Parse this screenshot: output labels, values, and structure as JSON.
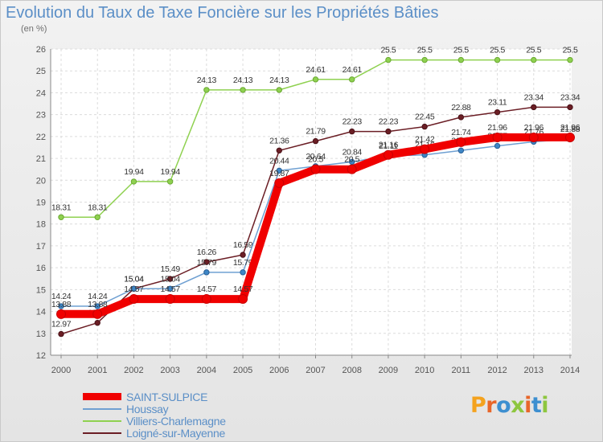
{
  "chart_data": {
    "type": "line",
    "title": "Evolution du Taux de Taxe Foncière sur les Propriétés Bâties",
    "ylabel": "(en %)",
    "xlabel": "",
    "ylim": [
      12,
      26
    ],
    "yticks": [
      12,
      13,
      14,
      15,
      16,
      17,
      18,
      19,
      20,
      21,
      22,
      23,
      24,
      25,
      26
    ],
    "x": [
      2000,
      2001,
      2002,
      2003,
      2004,
      2005,
      2006,
      2007,
      2008,
      2009,
      2010,
      2011,
      2012,
      2013,
      2014
    ],
    "series": [
      {
        "name": "Villiers-Charlemagne",
        "color": "#8fd150",
        "values": [
          18.31,
          18.31,
          19.94,
          19.94,
          24.13,
          24.13,
          24.13,
          24.61,
          24.61,
          25.5,
          25.5,
          25.5,
          25.5,
          25.5,
          25.5
        ]
      },
      {
        "name": "Loigné-sur-Mayenne",
        "color": "#6b1e25",
        "values": [
          12.97,
          13.48,
          15.04,
          15.49,
          16.26,
          16.59,
          21.36,
          21.79,
          22.23,
          22.23,
          22.45,
          22.88,
          23.11,
          23.34,
          23.34
        ]
      },
      {
        "name": "Houssay",
        "color": "#6fa0d2",
        "values": [
          14.24,
          14.24,
          15.04,
          15.04,
          15.79,
          15.79,
          20.44,
          20.64,
          20.84,
          21.11,
          21.16,
          21.36,
          21.57,
          21.76,
          21.88
        ]
      },
      {
        "name": "SAINT-SULPICE",
        "color": "#f00000",
        "values": [
          13.88,
          13.88,
          14.57,
          14.57,
          14.57,
          14.57,
          19.87,
          20.5,
          20.5,
          21.16,
          21.42,
          21.74,
          21.96,
          21.96,
          21.96
        ]
      }
    ],
    "legend_order": [
      "SAINT-SULPICE",
      "Houssay",
      "Villiers-Charlemagne",
      "Loigné-sur-Mayenne"
    ],
    "legend_position": "bottom-left",
    "grid": true
  },
  "brand": {
    "logo": "Proxiti",
    "logo_colors": [
      "#f4a21e",
      "#e8662a",
      "#3d8fd0",
      "#8dc63f",
      "#e8662a",
      "#3d8fd0",
      "#8dc63f"
    ]
  }
}
